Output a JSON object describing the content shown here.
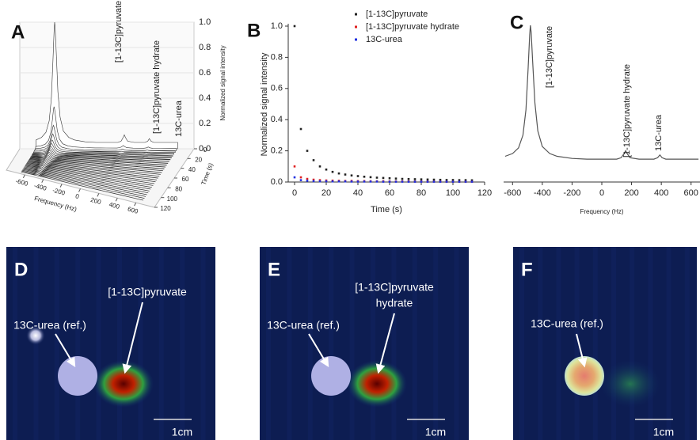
{
  "chart_data": [
    {
      "type": "waterfall",
      "label": "A",
      "xlabel": "Frequency (Hz)",
      "ylabel": "Time (s)",
      "zlabel": "Normalized signal intensity",
      "xlim": [
        -800,
        800
      ],
      "xticks": [
        -600,
        -400,
        -200,
        0,
        200,
        400,
        600
      ],
      "ylim": [
        0,
        120
      ],
      "yticks": [
        0,
        20,
        40,
        60,
        80,
        100,
        120
      ],
      "zlim": [
        0,
        1
      ],
      "zticks": [
        {
          "value": 0,
          "label": "0.0"
        },
        0.2,
        0.4,
        0.6,
        0.8,
        {
          "value": 1,
          "label": "1.0"
        }
      ],
      "annotations": [
        "[1-13C]pyruvate",
        "[1-13C]pyruvate hydrate",
        "13C-urea"
      ]
    },
    {
      "type": "scatter",
      "label": "B",
      "xlabel": "Time (s)",
      "ylabel": "Normalized signal intensity",
      "x": [
        0,
        4,
        8,
        12,
        16,
        20,
        24,
        28,
        32,
        36,
        40,
        44,
        48,
        52,
        56,
        60,
        64,
        68,
        72,
        76,
        80,
        84,
        88,
        92,
        96,
        100,
        104,
        108,
        112
      ],
      "series": [
        {
          "name": "[1-13C]pyruvate",
          "color": "#222222",
          "values": [
            1.0,
            0.34,
            0.2,
            0.14,
            0.1,
            0.08,
            0.065,
            0.055,
            0.048,
            0.042,
            0.038,
            0.034,
            0.031,
            0.028,
            0.026,
            0.024,
            0.022,
            0.02,
            0.019,
            0.018,
            0.017,
            0.016,
            0.015,
            0.014,
            0.013,
            0.013,
            0.012,
            0.012,
            0.011
          ]
        },
        {
          "name": "[1-13C]pyruvate hydrate",
          "color": "#e02020",
          "values": [
            0.1,
            0.03,
            0.02,
            0.015,
            0.012,
            0.01,
            0.009,
            0.008,
            0.007,
            0.007,
            0.006,
            0.006,
            0.005,
            0.005,
            0.005,
            0.004,
            0.004,
            0.004,
            0.004,
            0.003,
            0.003,
            0.003,
            0.003,
            0.003,
            0.002,
            0.002,
            0.002,
            0.002,
            0.002
          ]
        },
        {
          "name": "13C-urea",
          "color": "#2030e0",
          "values": [
            0.03,
            0.012,
            0.008,
            0.006,
            0.005,
            0.005,
            0.004,
            0.004,
            0.004,
            0.003,
            0.003,
            0.003,
            0.003,
            0.003,
            0.002,
            0.002,
            0.002,
            0.002,
            0.002,
            0.002,
            0.002,
            0.002,
            0.002,
            0.002,
            0.002,
            0.002,
            0.002,
            0.002,
            0.002
          ]
        }
      ],
      "xlim": [
        -4,
        120
      ],
      "xticks": [
        0,
        20,
        40,
        60,
        80,
        100,
        120
      ],
      "ylim": [
        0,
        1
      ],
      "yticks": [
        {
          "value": 0,
          "label": "0.0"
        },
        0.2,
        0.4,
        0.6,
        0.8,
        {
          "value": 1,
          "label": "1.0"
        }
      ],
      "legend": "upper right"
    },
    {
      "type": "line",
      "label": "C",
      "xlabel": "Frequency (Hz)",
      "color": "#555555",
      "x": [
        -650,
        -600,
        -560,
        -530,
        -510,
        -495,
        -485,
        -480,
        -475,
        -465,
        -450,
        -430,
        -400,
        -350,
        -300,
        -200,
        -100,
        0,
        100,
        130,
        150,
        160,
        170,
        190,
        250,
        350,
        375,
        390,
        405,
        430,
        500,
        600,
        650
      ],
      "values": [
        0.07,
        0.09,
        0.13,
        0.22,
        0.4,
        0.7,
        0.93,
        1.0,
        0.95,
        0.75,
        0.45,
        0.25,
        0.14,
        0.09,
        0.07,
        0.055,
        0.05,
        0.05,
        0.05,
        0.06,
        0.09,
        0.11,
        0.09,
        0.06,
        0.05,
        0.05,
        0.06,
        0.08,
        0.06,
        0.05,
        0.05,
        0.05,
        0.05
      ],
      "xlim": [
        -660,
        660
      ],
      "xticks": [
        -600,
        -400,
        -200,
        0,
        200,
        400,
        600
      ],
      "ylim": [
        0,
        1
      ],
      "annotations": [
        "[1-13C]pyruvate",
        "[1-13C]pyruvate hydrate",
        "13C-urea"
      ]
    }
  ],
  "images": [
    {
      "label": "D",
      "annotations": [
        "[1-13C]pyruvate",
        "13C-urea (ref.)"
      ],
      "scale": "1cm"
    },
    {
      "label": "E",
      "annotations": [
        "[1-13C]pyruvate",
        "hydrate",
        "13C-urea (ref.)"
      ],
      "scale": "1cm"
    },
    {
      "label": "F",
      "annotations": [
        "13C-urea (ref.)"
      ],
      "scale": "1cm"
    }
  ]
}
